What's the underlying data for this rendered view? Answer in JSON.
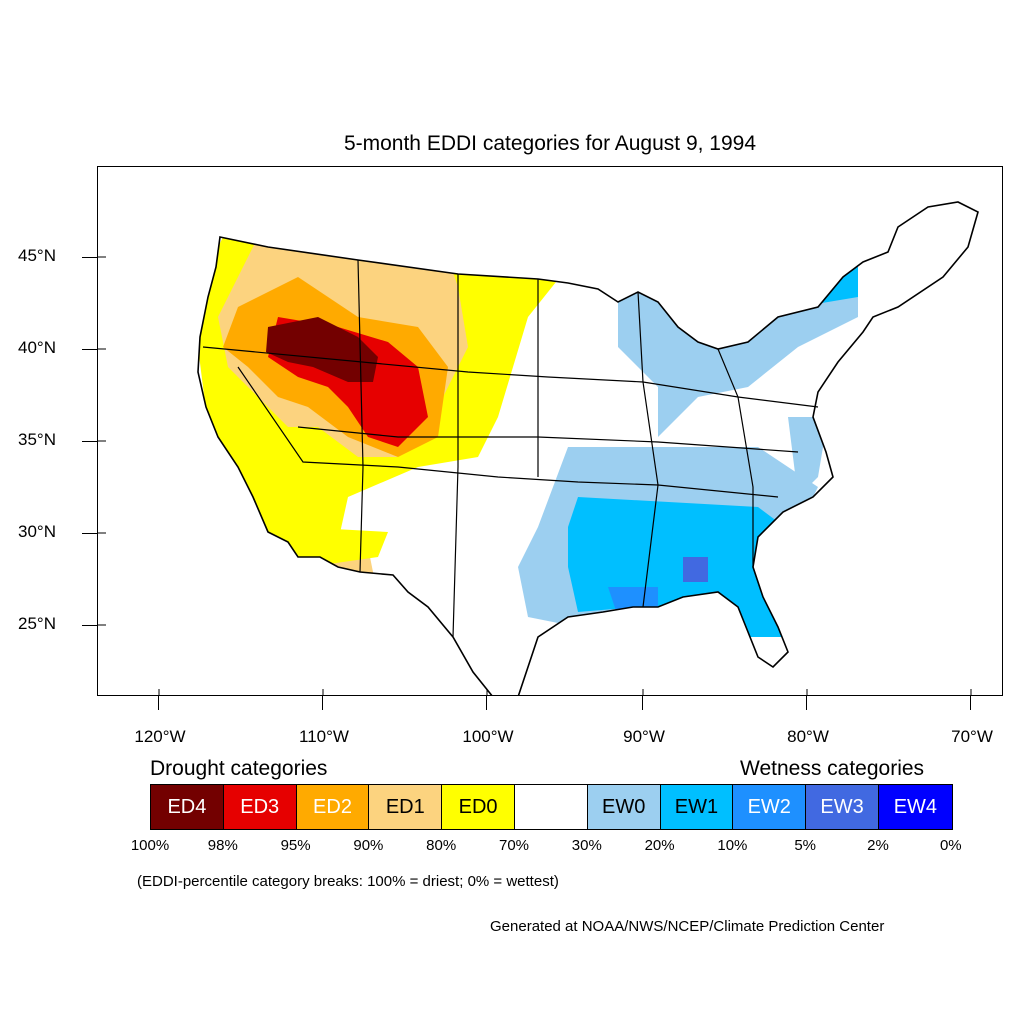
{
  "title": "5-month EDDI categories for August 9, 1994",
  "lat_labels": [
    "45°N",
    "40°N",
    "35°N",
    "30°N",
    "25°N"
  ],
  "lon_labels": [
    "120°W",
    "110°W",
    "100°W",
    "90°W",
    "80°W",
    "70°W"
  ],
  "legend": {
    "drought_heading": "Drought categories",
    "wetness_heading": "Wetness categories",
    "categories": [
      {
        "label": "ED4",
        "color": "#730000",
        "text_color": "#ffffff"
      },
      {
        "label": "ED3",
        "color": "#e60000",
        "text_color": "#ffffff"
      },
      {
        "label": "ED2",
        "color": "#ffaa00",
        "text_color": "#ffffff"
      },
      {
        "label": "ED1",
        "color": "#fcd37f",
        "text_color": "#000000"
      },
      {
        "label": "ED0",
        "color": "#ffff00",
        "text_color": "#000000"
      },
      {
        "label": "",
        "color": "#ffffff",
        "text_color": "#000000"
      },
      {
        "label": "EW0",
        "color": "#9ccff0",
        "text_color": "#000000"
      },
      {
        "label": "EW1",
        "color": "#00bfff",
        "text_color": "#000000"
      },
      {
        "label": "EW2",
        "color": "#1e90ff",
        "text_color": "#ffffff"
      },
      {
        "label": "EW3",
        "color": "#4169e1",
        "text_color": "#ffffff"
      },
      {
        "label": "EW4",
        "color": "#0000ff",
        "text_color": "#ffffff"
      }
    ],
    "breaks": [
      "100%",
      "98%",
      "95%",
      "90%",
      "80%",
      "70%",
      "30%",
      "20%",
      "10%",
      "5%",
      "2%",
      "0%"
    ]
  },
  "footnote": "(EDDI-percentile category breaks: 100% = driest; 0% = wettest)",
  "credit": "Generated at NOAA/NWS/NCEP/Climate Prediction Center"
}
